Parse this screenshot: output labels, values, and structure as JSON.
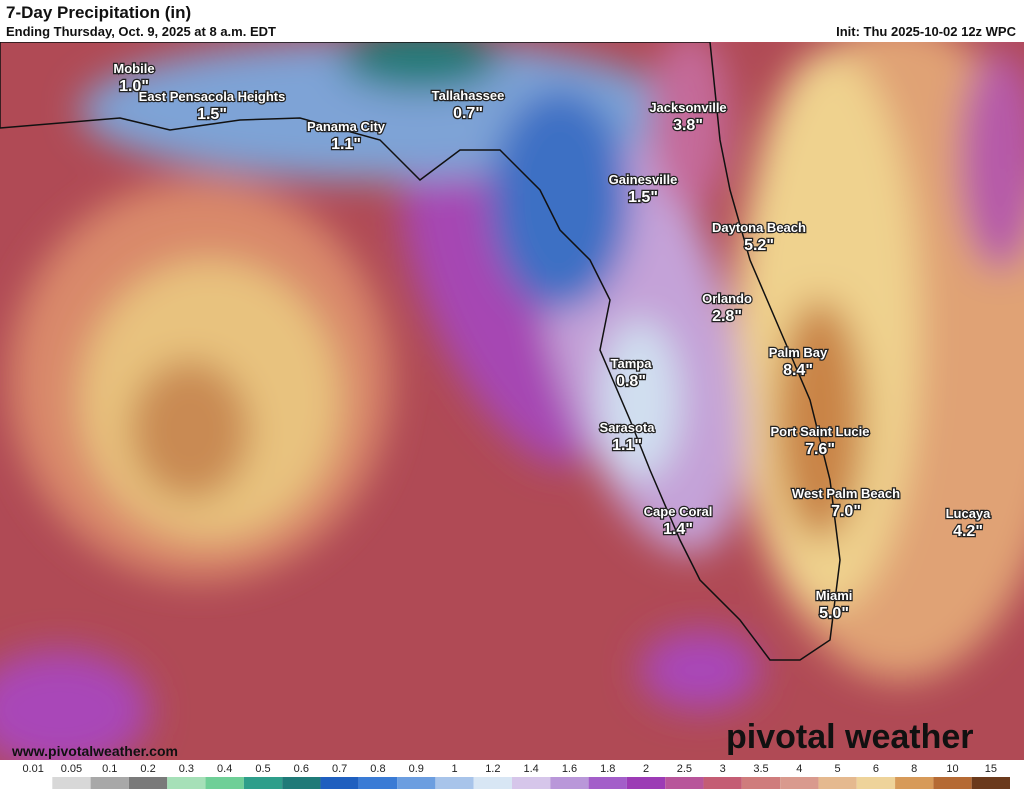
{
  "header": {
    "title": "7-Day Precipitation (in)",
    "subtitle": "Ending Thursday, Oct. 9, 2025 at 8 a.m. EDT",
    "init": "Init: Thu 2025-10-02 12z WPC"
  },
  "cities": [
    {
      "name": "Mobile",
      "value": "1.0\""
    },
    {
      "name": "East Pensacola Heights",
      "value": "1.5\""
    },
    {
      "name": "Panama City",
      "value": "1.1\""
    },
    {
      "name": "Tallahassee",
      "value": "0.7\""
    },
    {
      "name": "Jacksonville",
      "value": "3.8\""
    },
    {
      "name": "Gainesville",
      "value": "1.5\""
    },
    {
      "name": "Daytona Beach",
      "value": "5.2\""
    },
    {
      "name": "Orlando",
      "value": "2.8\""
    },
    {
      "name": "Palm Bay",
      "value": "8.4\""
    },
    {
      "name": "Tampa",
      "value": "0.8\""
    },
    {
      "name": "Sarasota",
      "value": "1.1\""
    },
    {
      "name": "Port Saint Lucie",
      "value": "7.6\""
    },
    {
      "name": "West Palm Beach",
      "value": "7.0\""
    },
    {
      "name": "Lucaya",
      "value": "4.2\""
    },
    {
      "name": "Cape Coral",
      "value": "1.4\""
    },
    {
      "name": "Miami",
      "value": "5.0\""
    }
  ],
  "footer": {
    "website": "www.pivotalweather.com",
    "brand": "pivotal weather"
  },
  "legend": [
    "0.01",
    "0.05",
    "0.1",
    "0.2",
    "0.3",
    "0.4",
    "0.5",
    "0.6",
    "0.7",
    "0.8",
    "0.9",
    "1",
    "1.2",
    "1.4",
    "1.6",
    "1.8",
    "2",
    "2.5",
    "3",
    "3.5",
    "4",
    "5",
    "6",
    "8",
    "10",
    "15"
  ]
}
